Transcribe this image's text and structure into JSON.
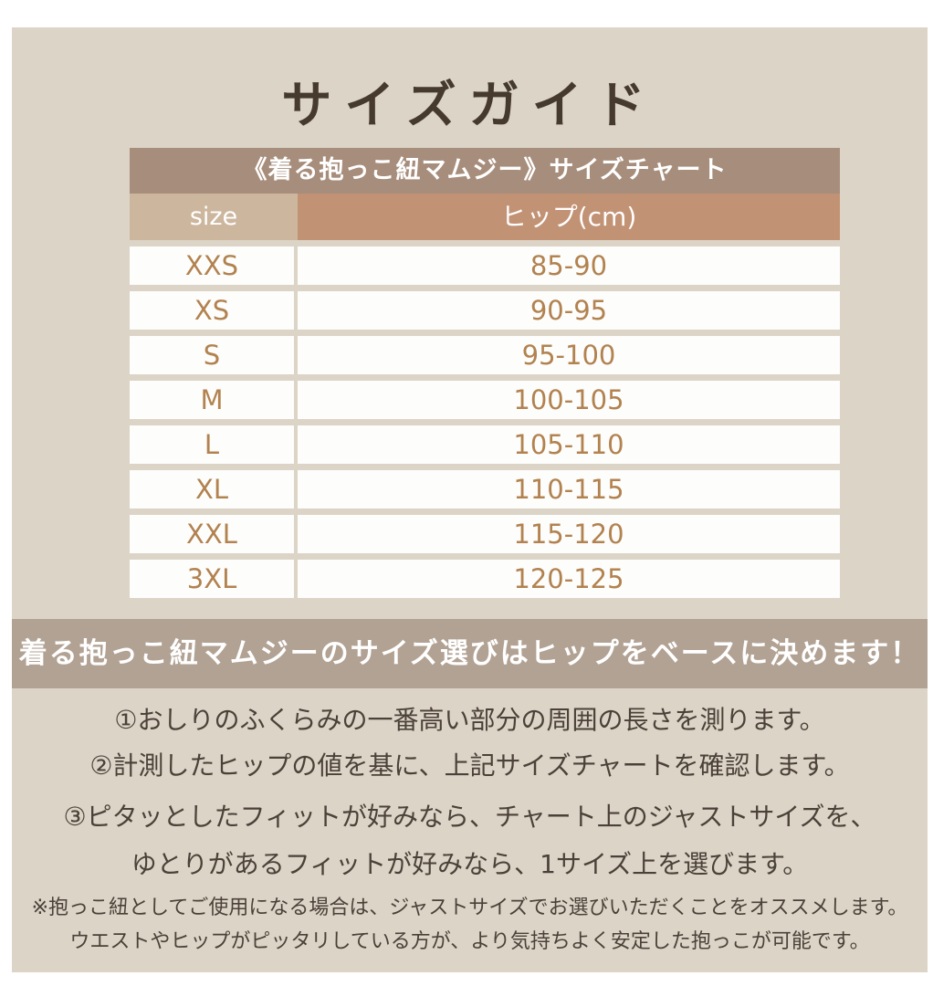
{
  "page": {
    "title": "サイズガイド"
  },
  "size_chart": {
    "title": "《着る抱っこ紐マムジー》サイズチャート",
    "columns": [
      "size",
      "ヒップ(cm)"
    ],
    "rows": [
      {
        "size": "XXS",
        "hip": "85-90"
      },
      {
        "size": "XS",
        "hip": "90-95"
      },
      {
        "size": "S",
        "hip": "95-100"
      },
      {
        "size": "M",
        "hip": "100-105"
      },
      {
        "size": "L",
        "hip": "105-110"
      },
      {
        "size": "XL",
        "hip": "110-115"
      },
      {
        "size": "XXL",
        "hip": "115-120"
      },
      {
        "size": "3XL",
        "hip": "120-125"
      }
    ]
  },
  "banner": {
    "text": "着る抱っこ紐マムジーのサイズ選びはヒップをベースに決めます！"
  },
  "instructions": {
    "steps": [
      "①おしりのふくらみの一番高い部分の周囲の長さを測ります。",
      "②計測したヒップの値を基に、上記サイズチャートを確認します。",
      "③ピタッとしたフィットが好みなら、チャート上のジャストサイズを、",
      "ゆとりがあるフィットが好みなら、1サイズ上を選びます。"
    ],
    "notes": [
      "※抱っこ紐としてご使用になる場合は、ジャストサイズでお選びいただくことをオススメします。",
      "ウエストやヒップがピッタリしている方が、より気持ちよく安定した抱っこが可能です。"
    ]
  },
  "colors": {
    "panel_background": "#dcd4c7",
    "chart_title_background": "#a78d7b",
    "size_header_background": "#cdb69e",
    "hip_header_background": "#c29275",
    "row_background": "#fdfdfc",
    "row_text": "#b2824f",
    "banner_background": "#b2a294",
    "title_text": "#463a2f",
    "body_text": "#4b4138"
  }
}
